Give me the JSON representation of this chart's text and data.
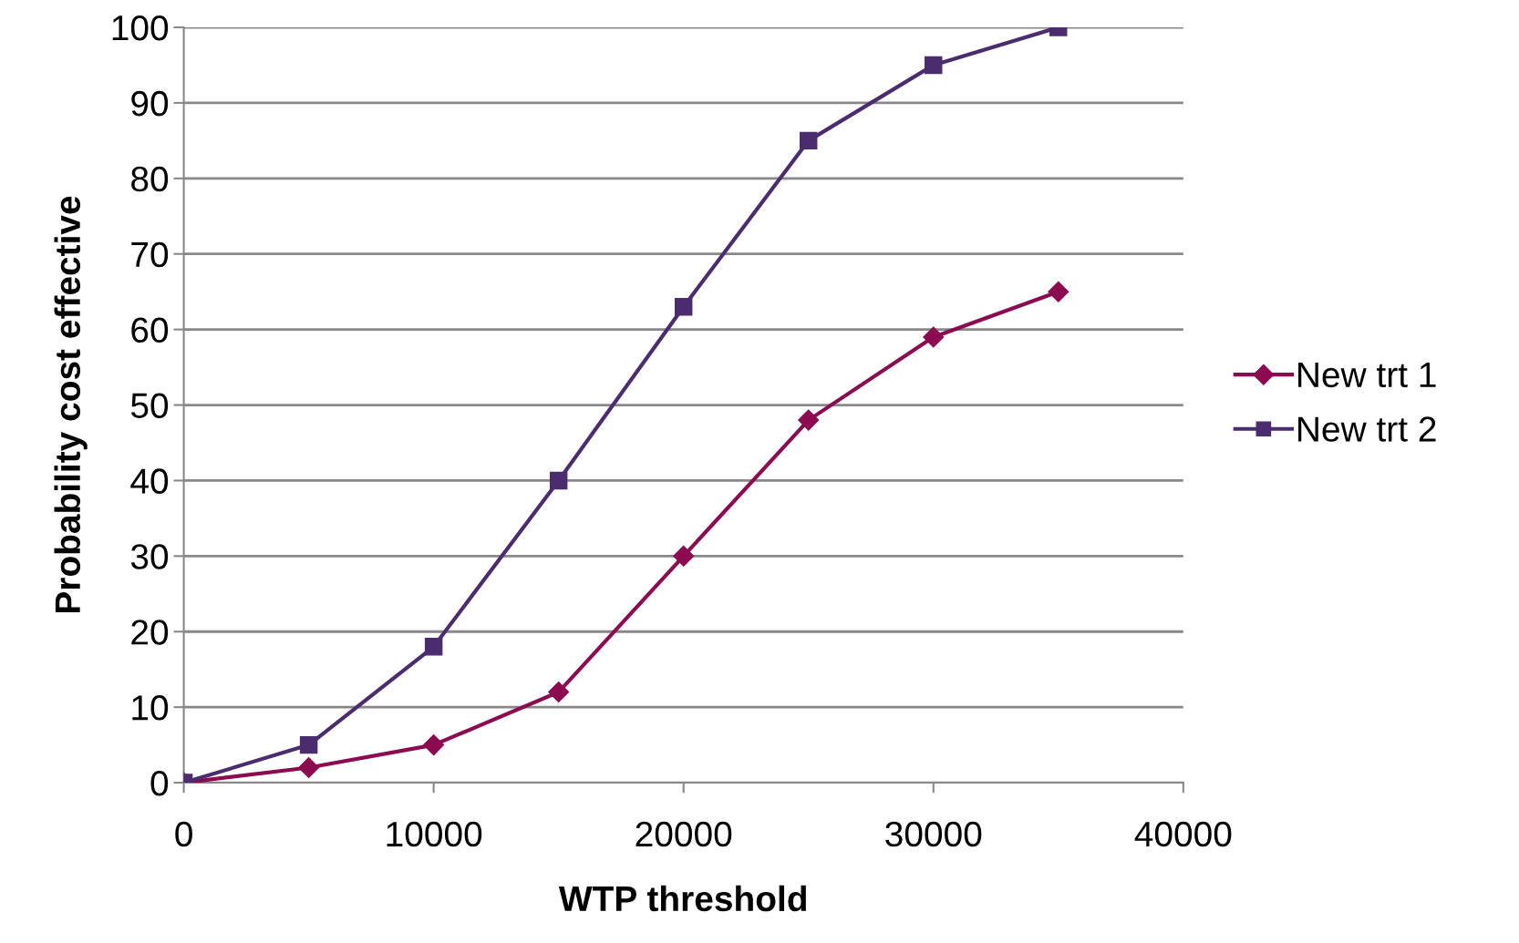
{
  "chart_data": {
    "type": "line",
    "xlabel": "WTP threshold",
    "ylabel": "Probability cost effective",
    "x": [
      0,
      5000,
      10000,
      15000,
      20000,
      25000,
      30000,
      35000
    ],
    "series": [
      {
        "name": "New trt 1",
        "color": "#8b0a50",
        "marker": "diamond",
        "values": [
          0,
          2,
          5,
          12,
          30,
          48,
          59,
          65
        ]
      },
      {
        "name": "New trt 2",
        "color": "#4b2c6e",
        "marker": "square",
        "values": [
          0,
          5,
          18,
          40,
          63,
          85,
          95,
          100
        ]
      }
    ],
    "xlim": [
      0,
      40000
    ],
    "xticks": [
      0,
      10000,
      20000,
      30000,
      40000
    ],
    "ylim": [
      0,
      100
    ],
    "yticks": [
      0,
      10,
      20,
      30,
      40,
      50,
      60,
      70,
      80,
      90,
      100
    ],
    "grid": "y",
    "legend": "right",
    "line_style": "solid"
  }
}
